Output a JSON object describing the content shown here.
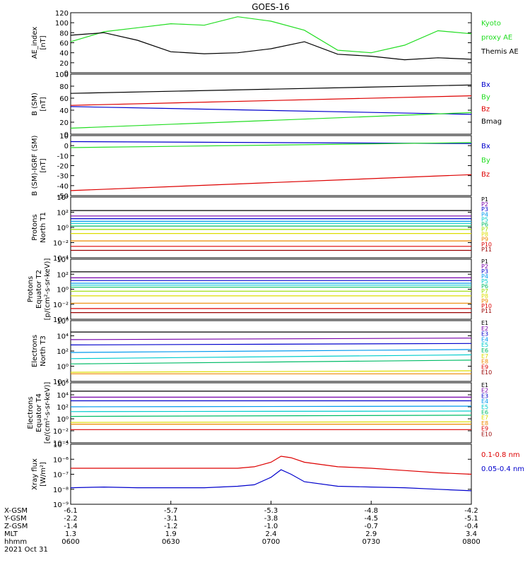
{
  "title": "GOES-16",
  "colors": {
    "black": "#000000",
    "green": "#22dd22",
    "blue": "#0000cc",
    "red": "#dd0000"
  },
  "panels": [
    {
      "id": "ae",
      "ylabel": [
        "AE_index",
        "[nT]"
      ],
      "ticks": [
        "120",
        "100",
        "80",
        "60",
        "40",
        "20",
        "0"
      ],
      "legend": [
        {
          "text": "Kyoto",
          "color": "#22dd22"
        },
        {
          "text": "proxy AE",
          "color": "#22dd22"
        },
        {
          "text": "Themis AE",
          "color": "#000000"
        }
      ]
    },
    {
      "id": "bsm",
      "ylabel": [
        "B (SM)",
        "[nT]"
      ],
      "ticks": [
        "100",
        "80",
        "60",
        "40",
        "20",
        "0"
      ],
      "legend": [
        {
          "text": "Bx",
          "color": "#0000cc"
        },
        {
          "text": "By",
          "color": "#22dd22"
        },
        {
          "text": "Bz",
          "color": "#dd0000"
        },
        {
          "text": "Bmag",
          "color": "#000000"
        }
      ]
    },
    {
      "id": "bigrf",
      "ylabel": [
        "B (SM)-IGRF (SM)",
        "[nT]"
      ],
      "ticks": [
        "10",
        "0",
        "-10",
        "-20",
        "-30",
        "-40",
        "-50"
      ],
      "legend": [
        {
          "text": "Bx",
          "color": "#0000cc"
        },
        {
          "text": "By",
          "color": "#22dd22"
        },
        {
          "text": "Bz",
          "color": "#dd0000"
        }
      ]
    },
    {
      "id": "pnorth",
      "ylabel": [
        "Protons",
        "North T1"
      ],
      "ticks": [
        "10⁴",
        "10²",
        "10⁰",
        "10⁻²",
        "10⁻⁴"
      ],
      "legend": [
        {
          "text": "P1",
          "color": "#000000"
        },
        {
          "text": "P2",
          "color": "#7700aa"
        },
        {
          "text": "P3",
          "color": "#0000cc"
        },
        {
          "text": "P4",
          "color": "#0099ee"
        },
        {
          "text": "P5",
          "color": "#00cccc"
        },
        {
          "text": "P6",
          "color": "#00bb66"
        },
        {
          "text": "P7",
          "color": "#99dd00"
        },
        {
          "text": "P8",
          "color": "#dddd00"
        },
        {
          "text": "P9",
          "color": "#ee8800"
        },
        {
          "text": "P10",
          "color": "#dd0000"
        },
        {
          "text": "P11",
          "color": "#990000"
        }
      ]
    },
    {
      "id": "peq",
      "ylabel": [
        "Protons",
        "Equator T2",
        "[p/(cm²-s-sr-keV)]"
      ],
      "ticks": [
        "10⁴",
        "10²",
        "10⁰",
        "10⁻²",
        "10⁻⁴"
      ],
      "legend": [
        {
          "text": "P1",
          "color": "#000000"
        },
        {
          "text": "P2",
          "color": "#7700aa"
        },
        {
          "text": "P3",
          "color": "#0000cc"
        },
        {
          "text": "P4",
          "color": "#0099ee"
        },
        {
          "text": "P5",
          "color": "#00cccc"
        },
        {
          "text": "P6",
          "color": "#00bb66"
        },
        {
          "text": "P7",
          "color": "#99dd00"
        },
        {
          "text": "P8",
          "color": "#dddd00"
        },
        {
          "text": "P9",
          "color": "#ee8800"
        },
        {
          "text": "P10",
          "color": "#dd0000"
        },
        {
          "text": "P11",
          "color": "#990000"
        }
      ]
    },
    {
      "id": "enorth",
      "ylabel": [
        "Electrons",
        "North T3"
      ],
      "ticks": [
        "10⁶",
        "10⁴",
        "10²",
        "10⁰",
        "10⁻²"
      ],
      "legend": [
        {
          "text": "E1",
          "color": "#000000"
        },
        {
          "text": "E2",
          "color": "#7700aa"
        },
        {
          "text": "E3",
          "color": "#0000cc"
        },
        {
          "text": "E4",
          "color": "#0099ee"
        },
        {
          "text": "E5",
          "color": "#00cccc"
        },
        {
          "text": "E6",
          "color": "#00bb66"
        },
        {
          "text": "E7",
          "color": "#dddd00"
        },
        {
          "text": "E8",
          "color": "#ee8800"
        },
        {
          "text": "E9",
          "color": "#dd0000"
        },
        {
          "text": "E10",
          "color": "#990000"
        }
      ]
    },
    {
      "id": "eeq",
      "ylabel": [
        "Electrons",
        "Equator T4",
        "[e/(cm²-s-sr-keV)]"
      ],
      "ticks": [
        "10⁶",
        "10⁴",
        "10²",
        "10⁰",
        "10⁻²",
        "10⁻⁴"
      ],
      "legend": [
        {
          "text": "E1",
          "color": "#000000"
        },
        {
          "text": "E2",
          "color": "#7700aa"
        },
        {
          "text": "E3",
          "color": "#0000cc"
        },
        {
          "text": "E4",
          "color": "#0099ee"
        },
        {
          "text": "E5",
          "color": "#00cccc"
        },
        {
          "text": "E6",
          "color": "#00bb66"
        },
        {
          "text": "E7",
          "color": "#dddd00"
        },
        {
          "text": "E8",
          "color": "#ee8800"
        },
        {
          "text": "E9",
          "color": "#dd0000"
        },
        {
          "text": "E10",
          "color": "#990000"
        }
      ]
    },
    {
      "id": "xray",
      "ylabel": [
        "Xray flux",
        "[W/m²]"
      ],
      "ticks": [
        "10⁻⁵",
        "10⁻⁶",
        "10⁻⁷",
        "10⁻⁸",
        "10⁻⁹"
      ],
      "legend": [
        {
          "text": "0.1-0.8 nm",
          "color": "#dd0000"
        },
        {
          "text": "0.05-0.4 nm",
          "color": "#0000cc"
        }
      ]
    }
  ],
  "xaxis": {
    "row_labels": [
      "X-GSM",
      "Y-GSM",
      "Z-GSM",
      "MLT",
      "hhmm",
      "2021 Oct 31"
    ],
    "columns": [
      [
        "-6.1",
        "-2.2",
        "-1.4",
        "1.3",
        "0600"
      ],
      [
        "-5.7",
        "-3.1",
        "-1.2",
        "1.9",
        "0630"
      ],
      [
        "-5.3",
        "-3.8",
        "-1.0",
        "2.4",
        "0700"
      ],
      [
        "-4.8",
        "-4.5",
        "-0.7",
        "2.9",
        "0730"
      ],
      [
        "-4.2",
        "-5.1",
        "-0.4",
        "3.4",
        "0800"
      ]
    ]
  },
  "chart_data": [
    {
      "type": "line",
      "ylim": [
        0,
        120
      ],
      "x": [
        0,
        10,
        20,
        30,
        40,
        50,
        60,
        70,
        80,
        90,
        100,
        110,
        120
      ],
      "series": [
        {
          "name": "Kyoto proxy AE",
          "color": "#22dd22",
          "values": [
            62,
            82,
            90,
            98,
            95,
            112,
            103,
            85,
            45,
            40,
            55,
            84,
            78
          ]
        },
        {
          "name": "Themis AE",
          "color": "#000000",
          "values": [
            75,
            80,
            65,
            42,
            38,
            40,
            48,
            62,
            37,
            33,
            26,
            30,
            27
          ]
        }
      ]
    },
    {
      "type": "line",
      "ylim": [
        0,
        100
      ],
      "x": [
        0,
        120
      ],
      "series": [
        {
          "name": "Bmag",
          "color": "#000000",
          "values": [
            68,
            82
          ]
        },
        {
          "name": "Bz",
          "color": "#dd0000",
          "values": [
            48,
            64
          ]
        },
        {
          "name": "Bx",
          "color": "#0000cc",
          "values": [
            46,
            33
          ]
        },
        {
          "name": "By",
          "color": "#22dd22",
          "values": [
            10,
            36
          ]
        }
      ]
    },
    {
      "type": "line",
      "ylim": [
        -50,
        10
      ],
      "x": [
        0,
        120
      ],
      "series": [
        {
          "name": "Bx",
          "color": "#0000cc",
          "values": [
            4,
            2
          ]
        },
        {
          "name": "By",
          "color": "#22dd22",
          "values": [
            -2,
            3
          ]
        },
        {
          "name": "Bz",
          "color": "#dd0000",
          "values": [
            -45,
            -29
          ]
        }
      ]
    },
    {
      "type": "line",
      "log": true,
      "ylim": [
        -5,
        4
      ],
      "x": [
        0,
        120
      ],
      "series": [
        {
          "name": "P1",
          "color": "#000000",
          "values": [
            2.0,
            2.0
          ]
        },
        {
          "name": "P2",
          "color": "#7700aa",
          "values": [
            1.2,
            1.2
          ]
        },
        {
          "name": "P3",
          "color": "#0000cc",
          "values": [
            0.8,
            0.8
          ]
        },
        {
          "name": "P4",
          "color": "#0099ee",
          "values": [
            0.4,
            0.4
          ]
        },
        {
          "name": "P5",
          "color": "#00cccc",
          "values": [
            0.1,
            0.1
          ]
        },
        {
          "name": "P6",
          "color": "#00bb66",
          "values": [
            -0.3,
            -0.3
          ]
        },
        {
          "name": "P7",
          "color": "#99dd00",
          "values": [
            -0.8,
            -0.8
          ]
        },
        {
          "name": "P8",
          "color": "#dddd00",
          "values": [
            -1.4,
            -1.4
          ]
        },
        {
          "name": "P9",
          "color": "#ee8800",
          "values": [
            -2.5,
            -2.5
          ]
        },
        {
          "name": "P10",
          "color": "#dd0000",
          "values": [
            -3.3,
            -3.3
          ]
        },
        {
          "name": "P11",
          "color": "#990000",
          "values": [
            -3.9,
            -3.9
          ]
        }
      ]
    },
    {
      "type": "line",
      "log": true,
      "ylim": [
        -5,
        4
      ],
      "x": [
        0,
        120
      ],
      "series": [
        {
          "name": "P1",
          "color": "#000000",
          "values": [
            2.1,
            2.1
          ]
        },
        {
          "name": "P2",
          "color": "#7700aa",
          "values": [
            1.2,
            1.2
          ]
        },
        {
          "name": "P3",
          "color": "#0000cc",
          "values": [
            0.8,
            0.8
          ]
        },
        {
          "name": "P4",
          "color": "#0099ee",
          "values": [
            0.4,
            0.4
          ]
        },
        {
          "name": "P5",
          "color": "#00cccc",
          "values": [
            0.1,
            0.1
          ]
        },
        {
          "name": "P6",
          "color": "#00bb66",
          "values": [
            -0.2,
            -0.2
          ]
        },
        {
          "name": "P7",
          "color": "#99dd00",
          "values": [
            -0.8,
            -0.8
          ]
        },
        {
          "name": "P8",
          "color": "#dddd00",
          "values": [
            -1.5,
            -1.5
          ]
        },
        {
          "name": "P9",
          "color": "#ee8800",
          "values": [
            -2.6,
            -2.6
          ]
        },
        {
          "name": "P10",
          "color": "#dd0000",
          "values": [
            -3.4,
            -3.4
          ]
        },
        {
          "name": "P11",
          "color": "#990000",
          "values": [
            -4.0,
            -4.0
          ]
        }
      ]
    },
    {
      "type": "line",
      "log": true,
      "ylim": [
        -2,
        6
      ],
      "x": [
        0,
        120
      ],
      "series": [
        {
          "name": "E1",
          "color": "#000000",
          "values": [
            4.5,
            4.5
          ]
        },
        {
          "name": "E2",
          "color": "#7700aa",
          "values": [
            3.5,
            3.7
          ]
        },
        {
          "name": "E3",
          "color": "#0000cc",
          "values": [
            2.8,
            3.0
          ]
        },
        {
          "name": "E4",
          "color": "#0099ee",
          "values": [
            1.8,
            2.2
          ]
        },
        {
          "name": "E5",
          "color": "#00cccc",
          "values": [
            1.0,
            1.5
          ]
        },
        {
          "name": "E6",
          "color": "#00bb66",
          "values": [
            0.3,
            0.8
          ]
        },
        {
          "name": "E7",
          "color": "#dddd00",
          "values": [
            -0.8,
            -0.6
          ]
        },
        {
          "name": "E8",
          "color": "#ee8800",
          "values": [
            -1.0,
            -1.0
          ]
        }
      ]
    },
    {
      "type": "line",
      "log": true,
      "ylim": [
        -4,
        6
      ],
      "x": [
        0,
        120
      ],
      "series": [
        {
          "name": "E1",
          "color": "#000000",
          "values": [
            4.6,
            4.6
          ]
        },
        {
          "name": "E2",
          "color": "#7700aa",
          "values": [
            3.6,
            3.6
          ]
        },
        {
          "name": "E3",
          "color": "#0000cc",
          "values": [
            3.0,
            3.0
          ]
        },
        {
          "name": "E4",
          "color": "#0099ee",
          "values": [
            2.0,
            2.1
          ]
        },
        {
          "name": "E5",
          "color": "#00cccc",
          "values": [
            1.2,
            1.3
          ]
        },
        {
          "name": "E6",
          "color": "#00bb66",
          "values": [
            0.4,
            0.6
          ]
        },
        {
          "name": "E7",
          "color": "#dddd00",
          "values": [
            -0.6,
            -0.5
          ]
        },
        {
          "name": "E8",
          "color": "#ee8800",
          "values": [
            -0.9,
            -0.9
          ]
        },
        {
          "name": "E9",
          "color": "#dd0000",
          "values": [
            -1.8,
            -1.8
          ]
        }
      ]
    },
    {
      "type": "line",
      "log": true,
      "ylim": [
        -9,
        -5
      ],
      "x": [
        0,
        10,
        20,
        30,
        40,
        50,
        55,
        60,
        63,
        66,
        70,
        80,
        90,
        100,
        110,
        120
      ],
      "series": [
        {
          "name": "0.1-0.8 nm",
          "color": "#dd0000",
          "values": [
            -6.6,
            -6.6,
            -6.6,
            -6.6,
            -6.6,
            -6.6,
            -6.5,
            -6.2,
            -5.8,
            -5.9,
            -6.2,
            -6.5,
            -6.6,
            -6.75,
            -6.9,
            -7.0
          ]
        },
        {
          "name": "0.05-0.4 nm",
          "color": "#0000cc",
          "values": [
            -7.9,
            -7.85,
            -7.9,
            -7.9,
            -7.9,
            -7.8,
            -7.7,
            -7.2,
            -6.7,
            -7.0,
            -7.5,
            -7.8,
            -7.85,
            -7.9,
            -8.0,
            -8.1
          ]
        }
      ]
    }
  ]
}
